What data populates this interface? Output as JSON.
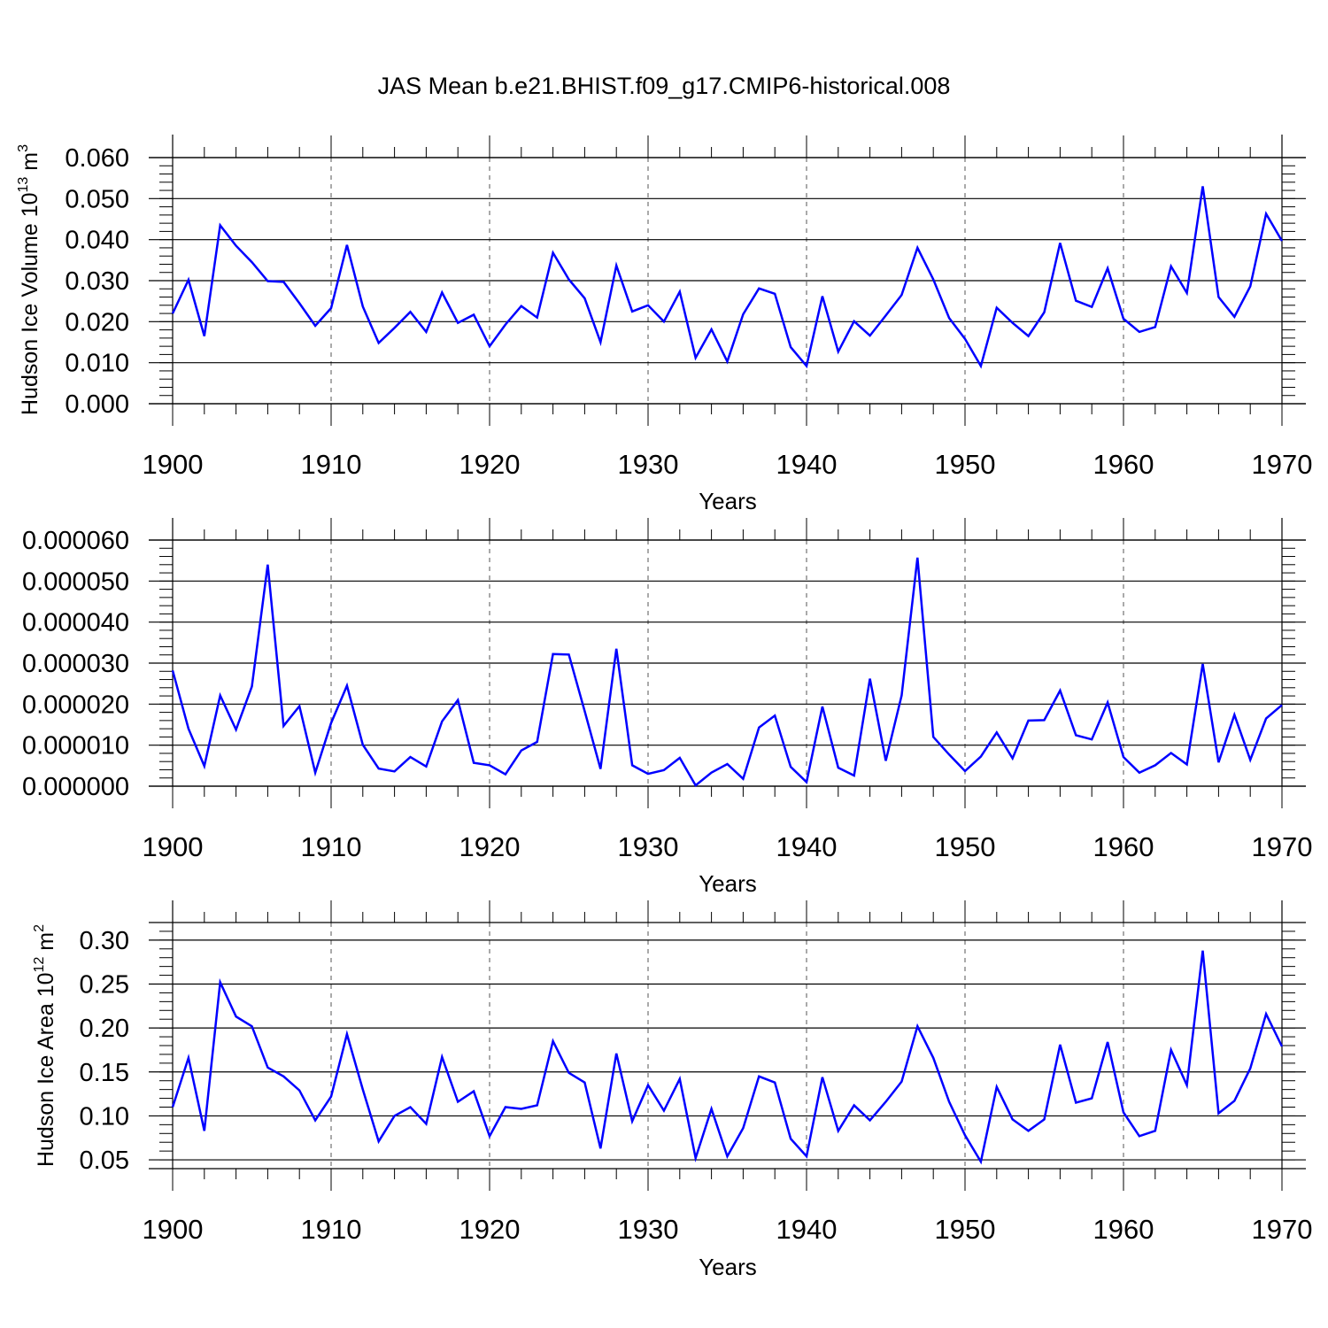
{
  "title": "JAS Mean b.e21.BHIST.f09_g17.CMIP6-historical.008",
  "series_color": "#0000ff",
  "chart_data": [
    {
      "type": "line",
      "ylabel_main": "Hudson Ice Volume 10",
      "ylabel_sup": "13",
      "ylabel_unit": " m",
      "ylabel_unit_sup": "3",
      "xlabel": "Years",
      "xlim": [
        1900,
        1970
      ],
      "ylim": [
        0.0,
        0.06
      ],
      "ytick_values": [
        0.0,
        0.01,
        0.02,
        0.03,
        0.04,
        0.05,
        0.06
      ],
      "ytick_labels": [
        "0.000",
        "0.010",
        "0.020",
        "0.030",
        "0.040",
        "0.050",
        "0.060"
      ],
      "xtick_labels": [
        "1900",
        "1910",
        "1920",
        "1930",
        "1940",
        "1950",
        "1960",
        "1970"
      ],
      "x": [
        1900,
        1901,
        1902,
        1903,
        1904,
        1905,
        1906,
        1907,
        1908,
        1909,
        1910,
        1911,
        1912,
        1913,
        1914,
        1915,
        1916,
        1917,
        1918,
        1919,
        1920,
        1921,
        1922,
        1923,
        1924,
        1925,
        1926,
        1927,
        1928,
        1929,
        1930,
        1931,
        1932,
        1933,
        1934,
        1935,
        1936,
        1937,
        1938,
        1939,
        1940,
        1941,
        1942,
        1943,
        1944,
        1945,
        1946,
        1947,
        1948,
        1949,
        1950,
        1951,
        1952,
        1953,
        1954,
        1955,
        1956,
        1957,
        1958,
        1959,
        1960,
        1961,
        1962,
        1963,
        1964,
        1965,
        1966,
        1967,
        1968,
        1969,
        1970
      ],
      "values": [
        0.022,
        0.0302,
        0.0165,
        0.0435,
        0.0385,
        0.0345,
        0.0299,
        0.0297,
        0.0245,
        0.019,
        0.0233,
        0.0387,
        0.0237,
        0.0148,
        0.0185,
        0.0224,
        0.0175,
        0.0271,
        0.0197,
        0.0217,
        0.014,
        0.0193,
        0.0238,
        0.021,
        0.0368,
        0.0303,
        0.0257,
        0.015,
        0.0337,
        0.0225,
        0.024,
        0.02,
        0.0273,
        0.0112,
        0.0181,
        0.0103,
        0.0218,
        0.0281,
        0.0268,
        0.0138,
        0.0092,
        0.0262,
        0.0127,
        0.0201,
        0.0166,
        0.0215,
        0.0265,
        0.038,
        0.0303,
        0.0209,
        0.0158,
        0.0092,
        0.0234,
        0.0197,
        0.0165,
        0.0223,
        0.0392,
        0.0251,
        0.0236,
        0.033,
        0.0207,
        0.0175,
        0.0187,
        0.0335,
        0.027,
        0.053,
        0.026,
        0.0212,
        0.0286,
        0.0463,
        0.0397
      ]
    },
    {
      "type": "line",
      "xlabel": "Years",
      "xlim": [
        1900,
        1970
      ],
      "ylim": [
        0.0,
        6e-05
      ],
      "ytick_values": [
        0.0,
        1e-05,
        2e-05,
        3e-05,
        4e-05,
        5e-05,
        6e-05
      ],
      "ytick_labels": [
        "0.000000",
        "0.000010",
        "0.000020",
        "0.000030",
        "0.000040",
        "0.000050",
        "0.000060"
      ],
      "xtick_labels": [
        "1900",
        "1910",
        "1920",
        "1930",
        "1940",
        "1950",
        "1960",
        "1970"
      ],
      "x": [
        1900,
        1901,
        1902,
        1903,
        1904,
        1905,
        1906,
        1907,
        1908,
        1909,
        1910,
        1911,
        1912,
        1913,
        1914,
        1915,
        1916,
        1917,
        1918,
        1919,
        1920,
        1921,
        1922,
        1923,
        1924,
        1925,
        1926,
        1927,
        1928,
        1929,
        1930,
        1931,
        1932,
        1933,
        1934,
        1935,
        1936,
        1937,
        1938,
        1939,
        1940,
        1941,
        1942,
        1943,
        1944,
        1945,
        1946,
        1947,
        1948,
        1949,
        1950,
        1951,
        1952,
        1953,
        1954,
        1955,
        1956,
        1957,
        1958,
        1959,
        1960,
        1961,
        1962,
        1963,
        1964,
        1965,
        1966,
        1967,
        1968,
        1969,
        1970
      ],
      "values": [
        2.82e-05,
        1.4e-05,
        4.9e-06,
        2.21e-05,
        1.38e-05,
        2.43e-05,
        5.4e-05,
        1.47e-05,
        1.95e-05,
        3.3e-06,
        1.54e-05,
        2.45e-05,
        1.01e-05,
        4.3e-06,
        3.6e-06,
        7.1e-06,
        4.8e-06,
        1.58e-05,
        2.1e-05,
        5.7e-06,
        5.1e-06,
        2.9e-06,
        8.7e-06,
        1.08e-05,
        3.22e-05,
        3.21e-05,
        1.83e-05,
        4.2e-06,
        3.35e-05,
        5.1e-06,
        3e-06,
        3.9e-06,
        6.9e-06,
        2e-07,
        3.3e-06,
        5.4e-06,
        1.8e-06,
        1.43e-05,
        1.72e-05,
        4.7e-06,
        1e-06,
        1.94e-05,
        4.5e-06,
        2.6e-06,
        2.62e-05,
        6.2e-06,
        2.21e-05,
        5.57e-05,
        1.2e-05,
        7.7e-06,
        3.7e-06,
        7.2e-06,
        1.31e-05,
        6.8e-06,
        1.6e-05,
        1.61e-05,
        2.33e-05,
        1.24e-05,
        1.14e-05,
        2.04e-05,
        7.1e-06,
        3.3e-06,
        5.1e-06,
        8.1e-06,
        5.3e-06,
        2.98e-05,
        5.8e-06,
        1.74e-05,
        6.4e-06,
        1.65e-05,
        1.98e-05
      ]
    },
    {
      "type": "line",
      "ylabel_main": "Hudson Ice Area 10",
      "ylabel_sup": "12",
      "ylabel_unit": " m",
      "ylabel_unit_sup": "2",
      "xlabel": "Years",
      "xlim": [
        1900,
        1970
      ],
      "ylim": [
        0.04,
        0.32
      ],
      "ytick_values": [
        0.05,
        0.1,
        0.15,
        0.2,
        0.25,
        0.3
      ],
      "ytick_labels": [
        "0.05",
        "0.10",
        "0.15",
        "0.20",
        "0.25",
        "0.30"
      ],
      "xtick_labels": [
        "1900",
        "1910",
        "1920",
        "1930",
        "1940",
        "1950",
        "1960",
        "1970"
      ],
      "x": [
        1900,
        1901,
        1902,
        1903,
        1904,
        1905,
        1906,
        1907,
        1908,
        1909,
        1910,
        1911,
        1912,
        1913,
        1914,
        1915,
        1916,
        1917,
        1918,
        1919,
        1920,
        1921,
        1922,
        1923,
        1924,
        1925,
        1926,
        1927,
        1928,
        1929,
        1930,
        1931,
        1932,
        1933,
        1934,
        1935,
        1936,
        1937,
        1938,
        1939,
        1940,
        1941,
        1942,
        1943,
        1944,
        1945,
        1946,
        1947,
        1948,
        1949,
        1950,
        1951,
        1952,
        1953,
        1954,
        1955,
        1956,
        1957,
        1958,
        1959,
        1960,
        1961,
        1962,
        1963,
        1964,
        1965,
        1966,
        1967,
        1968,
        1969,
        1970
      ],
      "values": [
        0.11,
        0.166,
        0.083,
        0.252,
        0.213,
        0.202,
        0.155,
        0.145,
        0.129,
        0.095,
        0.122,
        0.193,
        0.13,
        0.071,
        0.1,
        0.11,
        0.091,
        0.167,
        0.116,
        0.128,
        0.077,
        0.11,
        0.108,
        0.112,
        0.185,
        0.149,
        0.138,
        0.063,
        0.171,
        0.094,
        0.135,
        0.106,
        0.142,
        0.052,
        0.108,
        0.054,
        0.086,
        0.145,
        0.138,
        0.074,
        0.054,
        0.144,
        0.083,
        0.112,
        0.095,
        0.116,
        0.139,
        0.202,
        0.166,
        0.116,
        0.078,
        0.048,
        0.133,
        0.096,
        0.083,
        0.096,
        0.181,
        0.115,
        0.12,
        0.184,
        0.104,
        0.077,
        0.083,
        0.175,
        0.135,
        0.288,
        0.103,
        0.117,
        0.154,
        0.216,
        0.179
      ]
    }
  ]
}
